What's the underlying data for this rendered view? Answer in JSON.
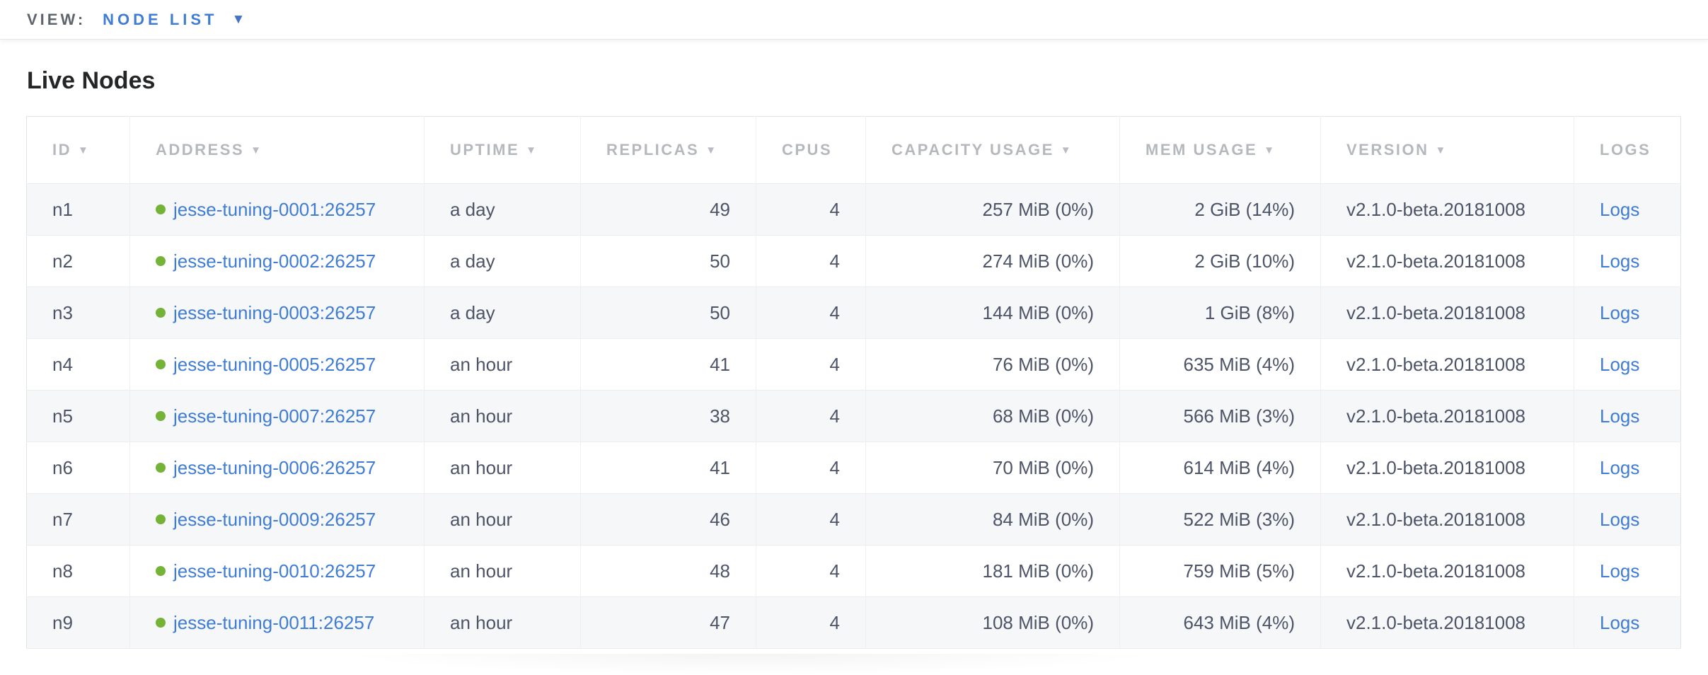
{
  "topbar": {
    "view_label": "VIEW:",
    "view_value": "NODE LIST"
  },
  "page": {
    "title": "Live Nodes"
  },
  "icons": {
    "sort_desc": "▼",
    "dropdown_caret": "▼"
  },
  "colors": {
    "link_blue": "#3f7cd6",
    "node_live_green": "#74b238",
    "header_gray": "#b5b8bd",
    "body_text": "#4d5467",
    "row_stripe": "#f6f7f8"
  },
  "table": {
    "headers": [
      {
        "label": "ID",
        "sorted": true
      },
      {
        "label": "ADDRESS",
        "sorted": true
      },
      {
        "label": "UPTIME",
        "sorted": true
      },
      {
        "label": "REPLICAS",
        "sorted": true
      },
      {
        "label": "CPUS",
        "sorted": false
      },
      {
        "label": "CAPACITY USAGE",
        "sorted": true
      },
      {
        "label": "MEM USAGE",
        "sorted": true
      },
      {
        "label": "VERSION",
        "sorted": true
      },
      {
        "label": "LOGS",
        "sorted": false
      }
    ],
    "rows": [
      {
        "id": "n1",
        "address": "jesse-tuning-0001:26257",
        "uptime": "a day",
        "replicas": "49",
        "cpus": "4",
        "capacity": "257 MiB (0%)",
        "mem": "2 GiB (14%)",
        "version": "v2.1.0-beta.20181008",
        "logs": "Logs"
      },
      {
        "id": "n2",
        "address": "jesse-tuning-0002:26257",
        "uptime": "a day",
        "replicas": "50",
        "cpus": "4",
        "capacity": "274 MiB (0%)",
        "mem": "2 GiB (10%)",
        "version": "v2.1.0-beta.20181008",
        "logs": "Logs"
      },
      {
        "id": "n3",
        "address": "jesse-tuning-0003:26257",
        "uptime": "a day",
        "replicas": "50",
        "cpus": "4",
        "capacity": "144 MiB (0%)",
        "mem": "1 GiB (8%)",
        "version": "v2.1.0-beta.20181008",
        "logs": "Logs"
      },
      {
        "id": "n4",
        "address": "jesse-tuning-0005:26257",
        "uptime": "an hour",
        "replicas": "41",
        "cpus": "4",
        "capacity": "76 MiB (0%)",
        "mem": "635 MiB (4%)",
        "version": "v2.1.0-beta.20181008",
        "logs": "Logs"
      },
      {
        "id": "n5",
        "address": "jesse-tuning-0007:26257",
        "uptime": "an hour",
        "replicas": "38",
        "cpus": "4",
        "capacity": "68 MiB (0%)",
        "mem": "566 MiB (3%)",
        "version": "v2.1.0-beta.20181008",
        "logs": "Logs"
      },
      {
        "id": "n6",
        "address": "jesse-tuning-0006:26257",
        "uptime": "an hour",
        "replicas": "41",
        "cpus": "4",
        "capacity": "70 MiB (0%)",
        "mem": "614 MiB (4%)",
        "version": "v2.1.0-beta.20181008",
        "logs": "Logs"
      },
      {
        "id": "n7",
        "address": "jesse-tuning-0009:26257",
        "uptime": "an hour",
        "replicas": "46",
        "cpus": "4",
        "capacity": "84 MiB (0%)",
        "mem": "522 MiB (3%)",
        "version": "v2.1.0-beta.20181008",
        "logs": "Logs"
      },
      {
        "id": "n8",
        "address": "jesse-tuning-0010:26257",
        "uptime": "an hour",
        "replicas": "48",
        "cpus": "4",
        "capacity": "181 MiB (0%)",
        "mem": "759 MiB (5%)",
        "version": "v2.1.0-beta.20181008",
        "logs": "Logs"
      },
      {
        "id": "n9",
        "address": "jesse-tuning-0011:26257",
        "uptime": "an hour",
        "replicas": "47",
        "cpus": "4",
        "capacity": "108 MiB (0%)",
        "mem": "643 MiB (4%)",
        "version": "v2.1.0-beta.20181008",
        "logs": "Logs"
      }
    ]
  }
}
